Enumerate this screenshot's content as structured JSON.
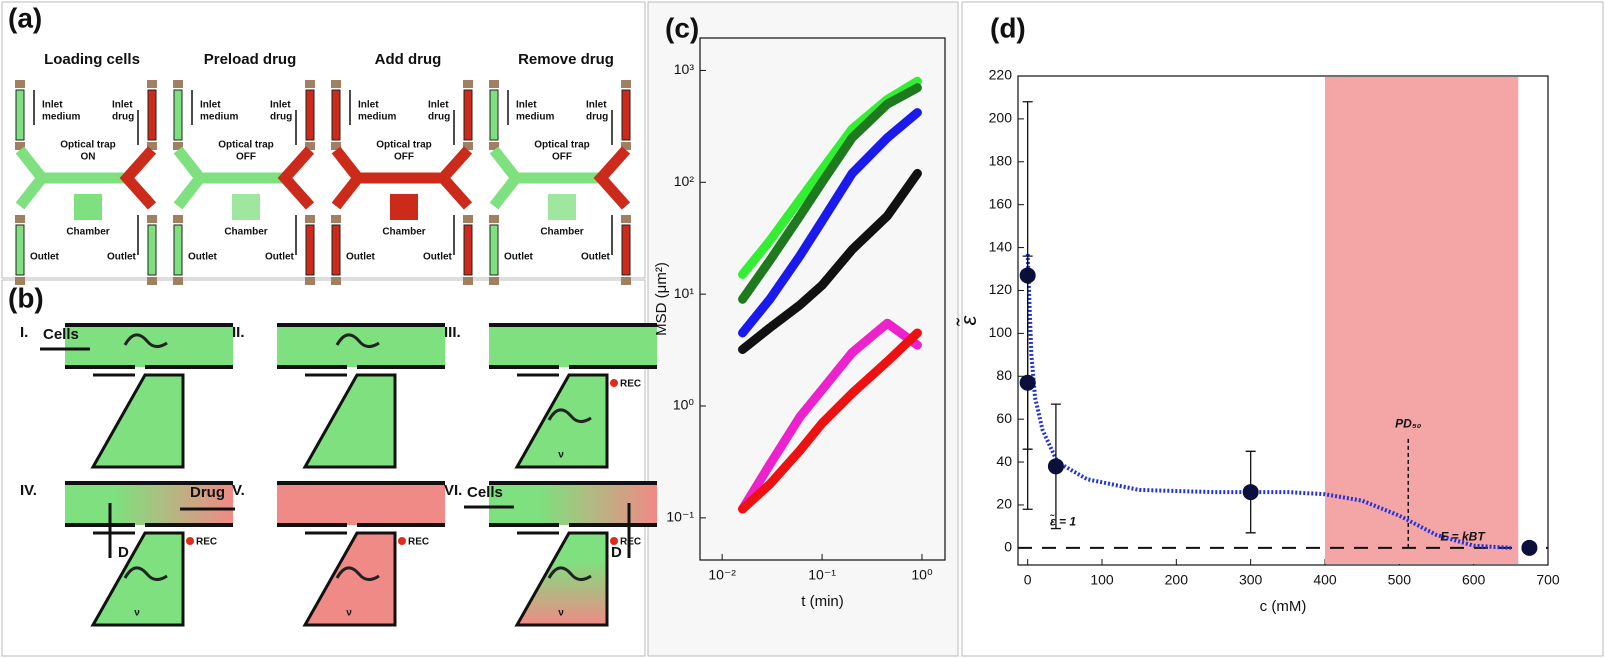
{
  "panel_a": {
    "label": "(a)",
    "steps": [
      {
        "title": "Loading cells",
        "inlet_medium": [
          "Inlet",
          "medium"
        ],
        "inlet_drug": [
          "Inlet",
          "drug"
        ],
        "trap": [
          "Optical trap",
          "ON"
        ],
        "chamber": "Chamber",
        "outlet_left": "Outlet",
        "outlet_right": "Outlet"
      },
      {
        "title": "Preload drug",
        "inlet_medium": [
          "Inlet",
          "medium"
        ],
        "inlet_drug": [
          "Inlet",
          "drug"
        ],
        "trap": [
          "Optical trap",
          "OFF"
        ],
        "chamber": "Chamber",
        "outlet_left": "Outlet",
        "outlet_right": "Outlet"
      },
      {
        "title": "Add drug",
        "inlet_medium": [
          "Inlet",
          "medium"
        ],
        "inlet_drug": [
          "Inlet",
          "drug"
        ],
        "trap": [
          "Optical trap",
          "OFF"
        ],
        "chamber": "Chamber",
        "outlet_left": "Outlet",
        "outlet_right": "Outlet"
      },
      {
        "title": "Remove drug",
        "inlet_medium": [
          "Inlet",
          "medium"
        ],
        "inlet_drug": [
          "Inlet",
          "drug"
        ],
        "trap": [
          "Optical trap",
          "OFF"
        ],
        "chamber": "Chamber",
        "outlet_left": "Outlet",
        "outlet_right": "Outlet"
      }
    ]
  },
  "panel_b": {
    "label": "(b)",
    "steps": [
      {
        "numeral": "I.",
        "cells": "Cells"
      },
      {
        "numeral": "II."
      },
      {
        "numeral": "III.",
        "rec": "REC",
        "nu": "ν"
      },
      {
        "numeral": "IV.",
        "drug": "Drug",
        "d": "D",
        "rec": "REC",
        "nu": "ν"
      },
      {
        "numeral": "V.",
        "rec": "REC",
        "nu": "ν"
      },
      {
        "numeral": "VI.",
        "cells": "Cells",
        "d": "D",
        "rec": "REC",
        "nu": "ν"
      }
    ]
  },
  "chart_data": [
    {
      "type": "line",
      "panel_label": "(c)",
      "x_label": "t (min)",
      "y_label": "MSD (μm²)",
      "log_x": true,
      "log_y": true,
      "xlim": [
        0.006,
        1.7
      ],
      "ylim": [
        0.042,
        1950
      ],
      "xticks": [
        {
          "value": 0.01,
          "label": "10⁻²"
        },
        {
          "value": 0.1,
          "label": "10⁻¹"
        },
        {
          "value": 1,
          "label": "10⁰"
        }
      ],
      "yticks": [
        {
          "value": 0.1,
          "label": "10⁻¹"
        },
        {
          "value": 1,
          "label": "10⁰"
        },
        {
          "value": 10,
          "label": "10¹"
        },
        {
          "value": 100,
          "label": "10²"
        },
        {
          "value": 1000,
          "label": "10³"
        }
      ],
      "x": [
        0.016,
        0.03,
        0.06,
        0.1,
        0.2,
        0.45,
        0.9
      ],
      "series": [
        {
          "color": "#33ee33",
          "values": [
            15,
            30,
            70,
            130,
            300,
            550,
            800
          ]
        },
        {
          "color": "#1f7a1f",
          "values": [
            9,
            20,
            50,
            100,
            250,
            500,
            700
          ]
        },
        {
          "color": "#1a1aee",
          "values": [
            4.5,
            9,
            22,
            45,
            120,
            250,
            420
          ]
        },
        {
          "color": "#111111",
          "values": [
            3.2,
            5,
            8,
            12,
            25,
            50,
            120
          ]
        },
        {
          "color": "#ee22cc",
          "values": [
            0.12,
            0.3,
            0.8,
            1.4,
            3,
            5.5,
            3.5
          ]
        },
        {
          "color": "#ee1111",
          "values": [
            0.12,
            0.2,
            0.4,
            0.7,
            1.3,
            2.5,
            4.5
          ]
        }
      ]
    },
    {
      "type": "scatter",
      "panel_label": "(d)",
      "x_label": "c (mM)",
      "y_label": "ε̃",
      "xlim": [
        -13,
        700
      ],
      "ylim": [
        -8,
        220
      ],
      "xticks": [
        0,
        100,
        200,
        300,
        400,
        500,
        600,
        700
      ],
      "yticks": [
        0,
        20,
        40,
        60,
        80,
        100,
        120,
        140,
        160,
        180,
        200,
        220
      ],
      "shade": [
        400,
        660
      ],
      "shade_color": "#f4a5a5",
      "points": {
        "color": "#0a0f3c",
        "x": [
          0,
          0,
          38,
          300,
          675
        ],
        "y": [
          127,
          77,
          38,
          26,
          0
        ],
        "errors": [
          81,
          59,
          29,
          19,
          0
        ]
      },
      "fit": {
        "color": "#2233dd",
        "x": [
          0,
          5,
          10,
          20,
          40,
          80,
          150,
          250,
          350,
          400,
          450,
          500,
          550,
          600,
          650
        ],
        "y": [
          137,
          90,
          70,
          55,
          40,
          32,
          27,
          26,
          26,
          25,
          22,
          15,
          6,
          1,
          0
        ]
      },
      "hline_y": 0,
      "vline": {
        "x": 512,
        "ymax": 52
      },
      "annotations": [
        "ε̃ = 1",
        "PD₅₀",
        "E = kBT"
      ]
    }
  ]
}
